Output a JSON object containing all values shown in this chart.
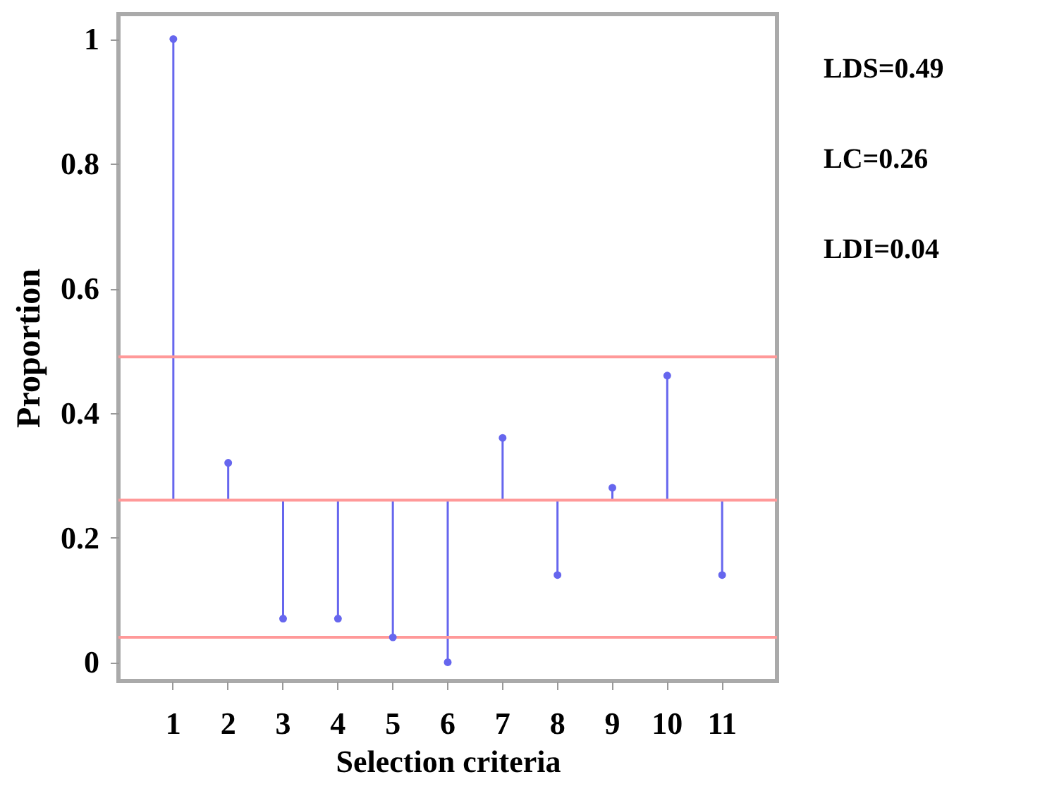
{
  "chart_data": {
    "type": "bar",
    "xlabel": "Selection criteria",
    "ylabel": "Proportion",
    "categories": [
      "1",
      "2",
      "3",
      "4",
      "5",
      "6",
      "7",
      "8",
      "9",
      "10",
      "11"
    ],
    "series": [
      {
        "color": "#6666ee",
        "base": [
          0.26,
          0.26,
          0.26,
          0.26,
          0.26,
          0.26,
          0.26,
          0.26,
          0.26,
          0.26,
          0.26
        ],
        "values": [
          0.74,
          0.06,
          -0.19,
          -0.19,
          -0.22,
          -0.26,
          0.1,
          -0.12,
          0.02,
          0.2,
          -0.12
        ]
      },
      {
        "type": "scatter",
        "color": "#6666ee",
        "x": [
          "1",
          "2",
          "3",
          "4",
          "5",
          "6",
          "7",
          "8",
          "9",
          "10",
          "11"
        ],
        "values": [
          1.0,
          0.32,
          0.07,
          0.07,
          0.04,
          0.0,
          0.36,
          0.14,
          0.28,
          0.46,
          0.14
        ]
      }
    ],
    "marker": "circle",
    "ylim": [
      -0.03,
      1.04
    ],
    "yticks": [
      0,
      0.2,
      0.4,
      0.6,
      0.8,
      1
    ],
    "ref_lines": [
      {
        "axis": "y",
        "value": 0.49,
        "color": "#ff9999"
      },
      {
        "axis": "y",
        "value": 0.26,
        "color": "#ff9999"
      },
      {
        "axis": "y",
        "value": 0.04,
        "color": "#ff9999"
      }
    ],
    "annotations": [
      "LDS=0.49",
      "LC=0.26",
      "LDI=0.04"
    ]
  }
}
